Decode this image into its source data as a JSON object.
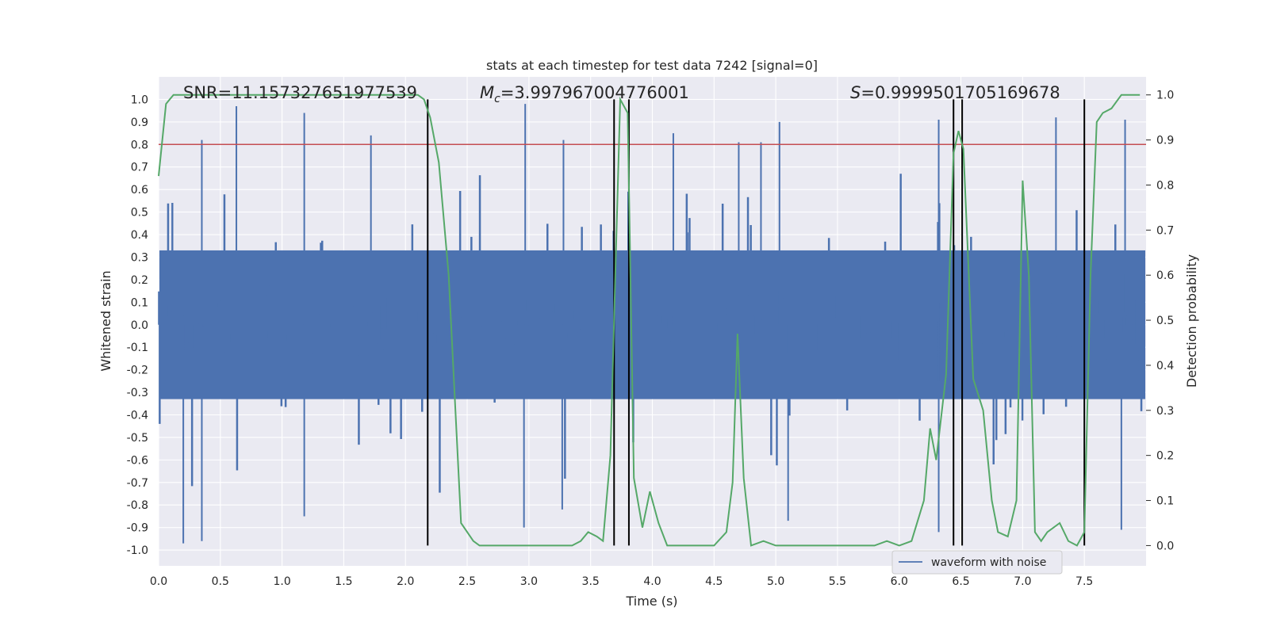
{
  "chart_data": {
    "type": "line",
    "title": "stats at each timestep for test data 7242 [signal=0]",
    "xlabel": "Time (s)",
    "ylabel_left": "Whitened strain",
    "ylabel_right": "Detection probability",
    "xlim": [
      0.0,
      8.0
    ],
    "ylim_left": [
      -1.07,
      1.1
    ],
    "ylim_right": [
      -0.045,
      1.04
    ],
    "x_ticks": [
      "0.0",
      "0.5",
      "1.0",
      "1.5",
      "2.0",
      "2.5",
      "3.0",
      "3.5",
      "4.0",
      "4.5",
      "5.0",
      "5.5",
      "6.0",
      "6.5",
      "7.0",
      "7.5"
    ],
    "y_left_ticks": [
      "1.0",
      "0.9",
      "0.8",
      "0.7",
      "0.6",
      "0.5",
      "0.4",
      "0.3",
      "0.2",
      "0.1",
      "0.0",
      "-0.1",
      "-0.2",
      "-0.3",
      "-0.4",
      "-0.5",
      "-0.6",
      "-0.7",
      "-0.8",
      "-0.9",
      "-1.0"
    ],
    "y_right_ticks": [
      "1.0",
      "0.9",
      "0.8",
      "0.7",
      "0.6",
      "0.5",
      "0.4",
      "0.3",
      "0.2",
      "0.1",
      "0.0"
    ],
    "annotations": {
      "snr": "SNR=11.157327651977539",
      "mc_symbol": "M",
      "mc_sub": "c",
      "mc_value": "=3.997967004776001",
      "s_symbol": "S",
      "s_value": "=0.9999501705169678"
    },
    "threshold": {
      "value": 0.8,
      "color": "#c44e52"
    },
    "vertical_markers": [
      2.18,
      3.69,
      3.81,
      6.44,
      6.51,
      7.5
    ],
    "series": [
      {
        "name": "waveform with noise",
        "color": "#4c72b0",
        "description": "whitened strain noise, dense band between about -0.35 and 0.35 with spikes",
        "spikes": [
          {
            "t": 0.63,
            "v": 0.97
          },
          {
            "t": 1.18,
            "v": 0.94
          },
          {
            "t": 2.97,
            "v": 0.98
          },
          {
            "t": 0.35,
            "v": 0.82
          },
          {
            "t": 1.72,
            "v": 0.84
          },
          {
            "t": 3.28,
            "v": 0.82
          },
          {
            "t": 4.17,
            "v": 0.85
          },
          {
            "t": 4.7,
            "v": 0.81
          },
          {
            "t": 4.88,
            "v": 0.81
          },
          {
            "t": 5.03,
            "v": 0.9
          },
          {
            "t": 6.32,
            "v": 0.91
          },
          {
            "t": 7.27,
            "v": 0.92
          },
          {
            "t": 7.83,
            "v": 0.91
          },
          {
            "t": 0.2,
            "v": -0.97
          },
          {
            "t": 0.35,
            "v": -0.96
          },
          {
            "t": 2.96,
            "v": -0.9
          },
          {
            "t": 3.27,
            "v": -0.82
          },
          {
            "t": 5.1,
            "v": -0.87
          },
          {
            "t": 6.32,
            "v": -0.92
          },
          {
            "t": 7.8,
            "v": -0.91
          },
          {
            "t": 1.18,
            "v": -0.85
          }
        ]
      },
      {
        "name": "detection probability",
        "color": "#55a868",
        "x": [
          0.0,
          0.06,
          0.12,
          0.2,
          0.5,
          1.0,
          1.5,
          2.0,
          2.05,
          2.1,
          2.15,
          2.2,
          2.27,
          2.35,
          2.45,
          2.55,
          2.6,
          2.8,
          3.0,
          3.2,
          3.35,
          3.42,
          3.48,
          3.55,
          3.6,
          3.66,
          3.7,
          3.74,
          3.8,
          3.85,
          3.92,
          3.98,
          4.05,
          4.12,
          4.3,
          4.5,
          4.6,
          4.65,
          4.69,
          4.74,
          4.8,
          4.9,
          5.0,
          5.2,
          5.5,
          5.8,
          5.9,
          6.0,
          6.1,
          6.2,
          6.25,
          6.3,
          6.38,
          6.44,
          6.48,
          6.52,
          6.6,
          6.68,
          6.75,
          6.8,
          6.88,
          6.95,
          7.0,
          7.05,
          7.1,
          7.15,
          7.2,
          7.3,
          7.37,
          7.44,
          7.5,
          7.55,
          7.6,
          7.65,
          7.72,
          7.8,
          7.86,
          7.95
        ],
        "values": [
          0.82,
          0.98,
          1.0,
          1.0,
          1.0,
          1.0,
          1.0,
          1.0,
          1.0,
          1.0,
          0.99,
          0.95,
          0.85,
          0.6,
          0.05,
          0.01,
          0.0,
          0.0,
          0.0,
          0.0,
          0.0,
          0.01,
          0.03,
          0.02,
          0.01,
          0.2,
          0.6,
          0.99,
          0.96,
          0.15,
          0.04,
          0.12,
          0.05,
          0.0,
          0.0,
          0.0,
          0.03,
          0.14,
          0.47,
          0.15,
          0.0,
          0.01,
          0.0,
          0.0,
          0.0,
          0.0,
          0.01,
          0.0,
          0.01,
          0.1,
          0.26,
          0.19,
          0.38,
          0.87,
          0.92,
          0.88,
          0.37,
          0.3,
          0.1,
          0.03,
          0.02,
          0.1,
          0.81,
          0.6,
          0.03,
          0.01,
          0.03,
          0.05,
          0.01,
          0.0,
          0.03,
          0.6,
          0.94,
          0.96,
          0.97,
          1.0,
          1.0,
          1.0
        ]
      }
    ],
    "legend": {
      "label": "waveform with noise",
      "placement": "bottom-right"
    }
  }
}
